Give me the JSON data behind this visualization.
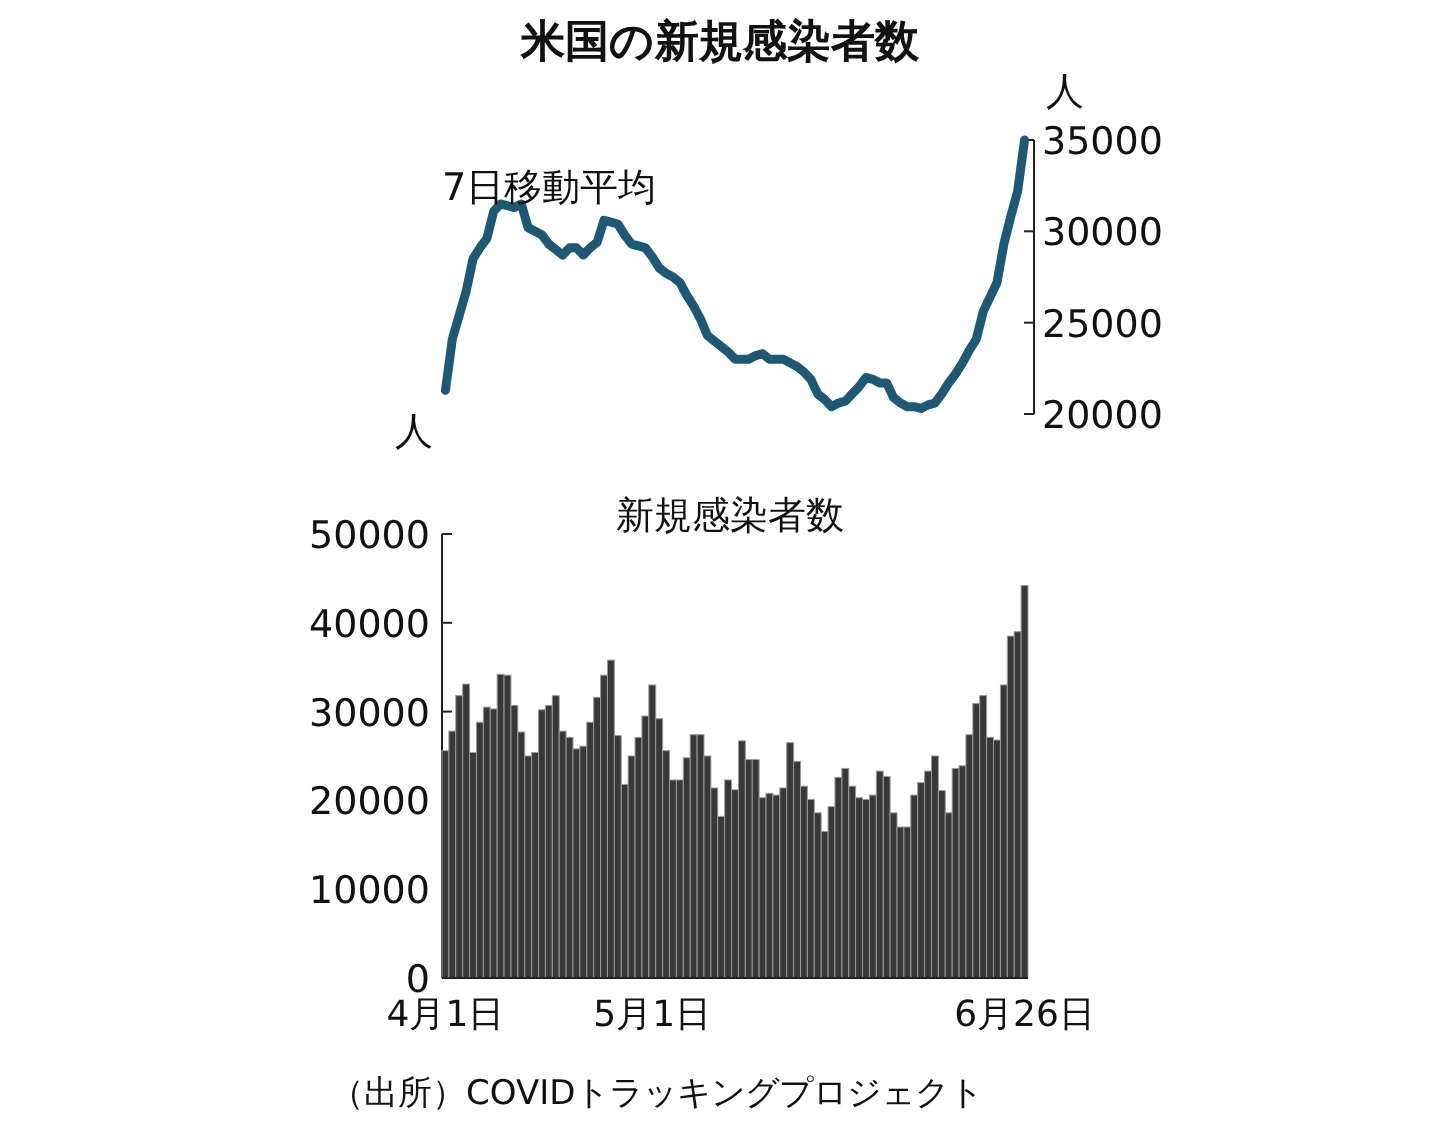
{
  "chart_data": [
    {
      "type": "line",
      "title": "米国の新規感染者数",
      "ylabel": "人",
      "ylim": [
        20000,
        35000
      ],
      "yticks": [
        20000,
        25000,
        30000,
        35000
      ],
      "tick_labels": "y",
      "grid": false,
      "categories": [
        null,
        null,
        null,
        null,
        null,
        null,
        null,
        null,
        null,
        null,
        null,
        null,
        null,
        null,
        null,
        null,
        null,
        null,
        null,
        null,
        null,
        null,
        null,
        null,
        null,
        null,
        null,
        null,
        null,
        null,
        null,
        null,
        null,
        null,
        null,
        null,
        null,
        null,
        null,
        null,
        null,
        null,
        null,
        null,
        null,
        null,
        null,
        null,
        null,
        null,
        null,
        null,
        null,
        null,
        null,
        null,
        null,
        null,
        null,
        null,
        null,
        null,
        null,
        null,
        null,
        null,
        null,
        null,
        null,
        null,
        null,
        null,
        null,
        null,
        null,
        null,
        null,
        null,
        null,
        null,
        null,
        null,
        null,
        null,
        null
      ],
      "series": [
        {
          "name": "7日移動平均",
          "color": "#1f5873",
          "values": [
            21300,
            24100,
            25400,
            26700,
            28500,
            29100,
            29600,
            31100,
            31500,
            31400,
            31300,
            31500,
            30200,
            30000,
            29800,
            29300,
            29000,
            28700,
            29100,
            29100,
            28700,
            29100,
            29400,
            30600,
            30500,
            30400,
            29800,
            29300,
            29200,
            29100,
            28600,
            28000,
            27700,
            27500,
            27200,
            26500,
            25900,
            25200,
            24300,
            24000,
            23700,
            23400,
            23000,
            23000,
            23000,
            23200,
            23300,
            23000,
            23000,
            23000,
            22800,
            22600,
            22300,
            21900,
            21100,
            20800,
            20400,
            20600,
            20700,
            21100,
            21500,
            22000,
            21900,
            21700,
            21700,
            20900,
            20600,
            20400,
            20400,
            20300,
            20500,
            20600,
            21100,
            21700,
            22200,
            22800,
            23500,
            24100,
            25600,
            26400,
            27200,
            29300,
            30800,
            32200,
            35000
          ]
        }
      ]
    },
    {
      "type": "bar",
      "title": "新規感染者数",
      "ylabel": "人",
      "ylim": [
        0,
        50000
      ],
      "yticks": [
        0,
        10000,
        20000,
        30000,
        40000,
        50000
      ],
      "grid": false,
      "color": "#383838",
      "categories": [
        "4月1日",
        null,
        null,
        null,
        null,
        null,
        null,
        null,
        null,
        null,
        null,
        null,
        null,
        null,
        null,
        null,
        null,
        null,
        null,
        null,
        null,
        null,
        null,
        null,
        null,
        null,
        null,
        null,
        null,
        null,
        "5月1日",
        null,
        null,
        null,
        null,
        null,
        null,
        null,
        null,
        null,
        null,
        null,
        null,
        null,
        null,
        null,
        null,
        null,
        null,
        null,
        null,
        null,
        null,
        null,
        null,
        null,
        null,
        null,
        null,
        null,
        null,
        null,
        null,
        null,
        null,
        null,
        null,
        null,
        null,
        null,
        null,
        null,
        null,
        null,
        null,
        null,
        null,
        null,
        null,
        null,
        null,
        null,
        null,
        null,
        "6月26日"
      ],
      "values": [
        25600,
        27800,
        31800,
        33100,
        25400,
        28800,
        30500,
        30300,
        34200,
        34100,
        30700,
        27700,
        25000,
        25400,
        30200,
        30700,
        31800,
        27800,
        27100,
        25800,
        26100,
        28800,
        31600,
        34100,
        35800,
        27300,
        21800,
        25000,
        27100,
        29500,
        33000,
        29200,
        25600,
        22300,
        22300,
        24800,
        27400,
        27400,
        25000,
        21400,
        18200,
        22300,
        21200,
        26700,
        24600,
        24600,
        20300,
        20800,
        20600,
        21400,
        26500,
        24400,
        21600,
        20100,
        18600,
        16500,
        19300,
        22600,
        23600,
        21600,
        20300,
        20100,
        20600,
        23300,
        22700,
        18600,
        17000,
        17000,
        20600,
        22000,
        23300,
        25000,
        21100,
        18600,
        23600,
        23900,
        27400,
        30900,
        31800,
        27100,
        26800,
        33000,
        38500,
        39000,
        44200
      ],
      "annotations": [
        "（出所）COVIDトラッキングプロジェクト"
      ]
    }
  ]
}
